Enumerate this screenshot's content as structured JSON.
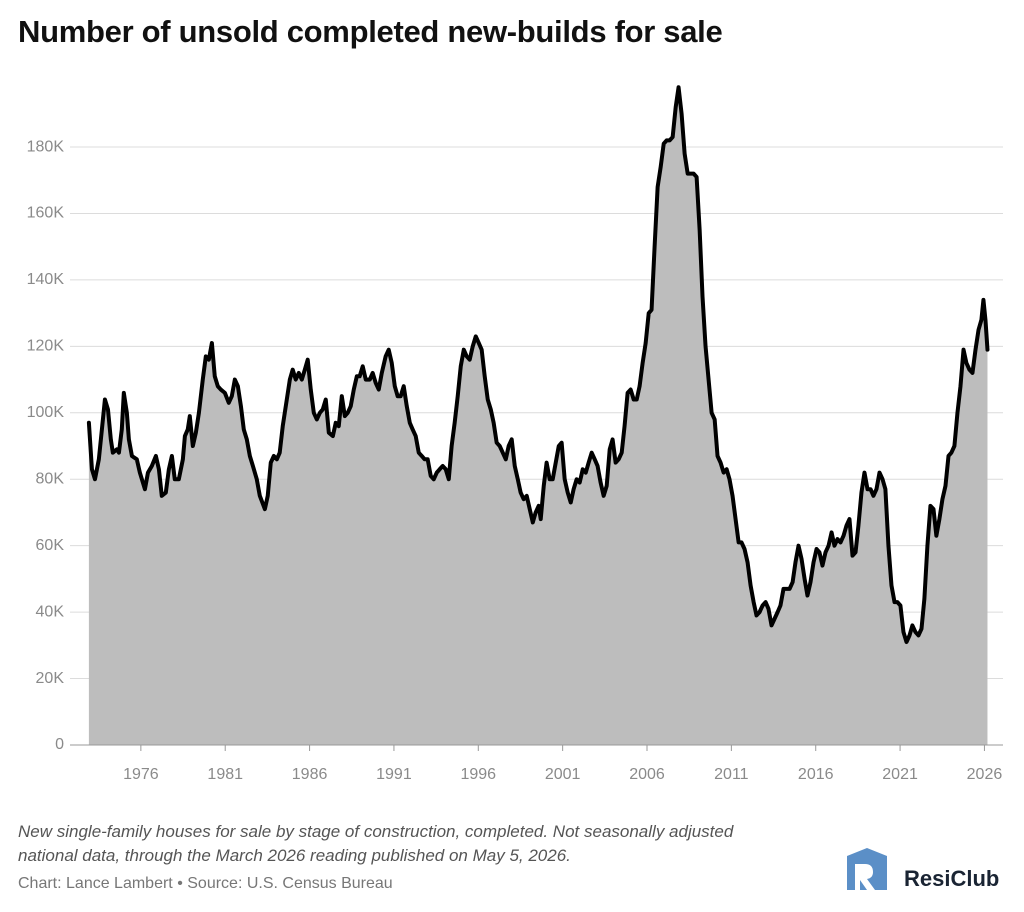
{
  "chart_data": {
    "type": "area",
    "title": "Number of unsold completed new-builds for sale",
    "note": "New single-family houses for sale by stage of construction, completed. Not seasonally adjusted national data, through the March 2026 reading published on May 5, 2026.",
    "source": "Chart: Lance Lambert • Source: U.S. Census Bureau",
    "brand": "ResiClub",
    "line_color": "#000000",
    "fill_color": "#bdbdbd",
    "grid": true,
    "xlim": [
      1971.8,
      2027.1
    ],
    "xticks": [
      1976,
      1981,
      1986,
      1991,
      1996,
      2001,
      2006,
      2011,
      2016,
      2021,
      2026
    ],
    "ylim": [
      0,
      200000
    ],
    "yticks": [
      0,
      {
        "value": 20000,
        "label": "20K"
      },
      {
        "value": 40000,
        "label": "40K"
      },
      {
        "value": 60000,
        "label": "60K"
      },
      {
        "value": 80000,
        "label": "80K"
      },
      {
        "value": 100000,
        "label": "100K"
      },
      {
        "value": 120000,
        "label": "120K"
      },
      {
        "value": 140000,
        "label": "140K"
      },
      {
        "value": 160000,
        "label": "160K"
      },
      {
        "value": 180000,
        "label": "180K"
      }
    ],
    "x": [
      1972.92,
      1973.1,
      1973.28,
      1973.51,
      1973.69,
      1973.87,
      1974.05,
      1974.22,
      1974.34,
      1974.58,
      1974.7,
      1974.87,
      1974.99,
      1975.17,
      1975.29,
      1975.47,
      1975.76,
      1975.94,
      1976.24,
      1976.42,
      1976.65,
      1976.89,
      1977.07,
      1977.24,
      1977.48,
      1977.66,
      1977.84,
      1978.01,
      1978.25,
      1978.49,
      1978.61,
      1978.78,
      1978.9,
      1979.08,
      1979.26,
      1979.44,
      1979.67,
      1979.85,
      1980.03,
      1980.21,
      1980.38,
      1980.56,
      1980.74,
      1980.98,
      1981.21,
      1981.39,
      1981.57,
      1981.75,
      1981.93,
      1982.1,
      1982.28,
      1982.46,
      1982.64,
      1982.87,
      1983.05,
      1983.35,
      1983.52,
      1983.7,
      1983.88,
      1984.06,
      1984.23,
      1984.41,
      1984.65,
      1984.83,
      1985.0,
      1985.18,
      1985.36,
      1985.54,
      1985.72,
      1985.89,
      1986.07,
      1986.25,
      1986.43,
      1986.61,
      1986.78,
      1986.96,
      1987.14,
      1987.38,
      1987.55,
      1987.73,
      1987.91,
      1988.09,
      1988.26,
      1988.44,
      1988.62,
      1988.8,
      1988.97,
      1989.15,
      1989.33,
      1989.57,
      1989.74,
      1989.92,
      1990.1,
      1990.28,
      1990.51,
      1990.69,
      1990.87,
      1991.05,
      1991.22,
      1991.4,
      1991.58,
      1991.76,
      1991.94,
      1992.11,
      1992.29,
      1992.47,
      1992.65,
      1992.82,
      1993.0,
      1993.18,
      1993.36,
      1993.54,
      1993.71,
      1993.89,
      1994.07,
      1994.25,
      1994.42,
      1994.6,
      1994.78,
      1994.96,
      1995.14,
      1995.31,
      1995.49,
      1995.67,
      1995.85,
      1996.03,
      1996.2,
      1996.38,
      1996.56,
      1996.74,
      1996.91,
      1997.09,
      1997.27,
      1997.45,
      1997.63,
      1997.8,
      1997.98,
      1998.16,
      1998.34,
      1998.51,
      1998.69,
      1998.87,
      1999.05,
      1999.23,
      1999.4,
      1999.58,
      1999.7,
      1999.88,
      2000.05,
      2000.23,
      2000.41,
      2000.59,
      2000.77,
      2000.94,
      2001.12,
      2001.3,
      2001.48,
      2001.65,
      2001.83,
      2002.01,
      2002.19,
      2002.37,
      2002.54,
      2002.72,
      2002.9,
      2003.07,
      2003.25,
      2003.43,
      2003.61,
      2003.79,
      2003.96,
      2004.14,
      2004.32,
      2004.5,
      2004.67,
      2004.85,
      2005.03,
      2005.21,
      2005.39,
      2005.56,
      2005.74,
      2005.92,
      2006.1,
      2006.27,
      2006.45,
      2006.63,
      2006.81,
      2006.99,
      2007.16,
      2007.34,
      2007.52,
      2007.7,
      2007.87,
      2008.05,
      2008.23,
      2008.41,
      2008.58,
      2008.76,
      2008.94,
      2009.12,
      2009.29,
      2009.47,
      2009.65,
      2009.83,
      2010.01,
      2010.18,
      2010.36,
      2010.54,
      2010.72,
      2010.89,
      2011.07,
      2011.25,
      2011.43,
      2011.6,
      2011.78,
      2011.96,
      2012.14,
      2012.32,
      2012.49,
      2012.67,
      2012.85,
      2013.03,
      2013.2,
      2013.38,
      2013.56,
      2013.74,
      2013.91,
      2014.09,
      2014.27,
      2014.45,
      2014.63,
      2014.8,
      2014.98,
      2015.16,
      2015.34,
      2015.51,
      2015.69,
      2015.87,
      2016.05,
      2016.22,
      2016.4,
      2016.58,
      2016.76,
      2016.94,
      2017.11,
      2017.29,
      2017.47,
      2017.65,
      2017.82,
      2018.0,
      2018.18,
      2018.36,
      2018.53,
      2018.71,
      2018.89,
      2019.07,
      2019.25,
      2019.42,
      2019.6,
      2019.78,
      2019.96,
      2020.13,
      2020.31,
      2020.49,
      2020.67,
      2020.84,
      2021.02,
      2021.2,
      2021.38,
      2021.56,
      2021.73,
      2021.91,
      2022.09,
      2022.27,
      2022.44,
      2022.62,
      2022.8,
      2022.98,
      2023.15,
      2023.33,
      2023.51,
      2023.69,
      2023.87,
      2024.04,
      2024.22,
      2024.4,
      2024.58,
      2024.76,
      2024.93,
      2025.11,
      2025.29,
      2025.47,
      2025.65,
      2025.82,
      2025.94,
      2026.06,
      2026.18
    ],
    "values": [
      97000,
      83000,
      80000,
      86000,
      95000,
      104000,
      101000,
      92000,
      88000,
      89000,
      88000,
      95000,
      106000,
      100000,
      92000,
      87000,
      86000,
      82000,
      77000,
      82000,
      84000,
      87000,
      83000,
      75000,
      76000,
      83000,
      87000,
      80000,
      80000,
      86000,
      93000,
      95000,
      99000,
      90000,
      94000,
      100000,
      110000,
      117000,
      116000,
      121000,
      111000,
      108000,
      107000,
      106000,
      103000,
      105000,
      110000,
      108000,
      102000,
      95000,
      92000,
      87000,
      84000,
      80000,
      75000,
      71000,
      75000,
      85000,
      87000,
      86000,
      88000,
      96000,
      104000,
      110000,
      113000,
      110000,
      112000,
      110000,
      113000,
      116000,
      107000,
      100000,
      98000,
      100000,
      101000,
      104000,
      94000,
      93000,
      97000,
      96000,
      105000,
      99000,
      100000,
      102000,
      107000,
      111000,
      111000,
      114000,
      110000,
      110000,
      112000,
      109000,
      107000,
      112000,
      117000,
      119000,
      115000,
      108000,
      105000,
      105000,
      108000,
      102000,
      97000,
      95000,
      93000,
      88000,
      87000,
      86000,
      86000,
      81000,
      80000,
      82000,
      83000,
      84000,
      83000,
      80000,
      90000,
      97000,
      105000,
      114000,
      119000,
      117000,
      116000,
      120000,
      123000,
      121000,
      119000,
      111000,
      104000,
      101000,
      97000,
      91000,
      90000,
      88000,
      86000,
      90000,
      92000,
      84000,
      80000,
      76000,
      74000,
      75000,
      71000,
      67000,
      70000,
      72000,
      68000,
      78000,
      85000,
      80000,
      80000,
      85000,
      90000,
      91000,
      80000,
      76000,
      73000,
      77000,
      80000,
      79000,
      83000,
      82000,
      85000,
      88000,
      86000,
      84000,
      79000,
      75000,
      78000,
      89000,
      92000,
      85000,
      86000,
      88000,
      96000,
      106000,
      107000,
      104000,
      104000,
      108000,
      115000,
      121000,
      130000,
      131000,
      150000,
      168000,
      174000,
      181000,
      182000,
      182000,
      183000,
      192000,
      198000,
      190000,
      178000,
      172000,
      172000,
      172000,
      171000,
      155000,
      135000,
      120000,
      110000,
      100000,
      98000,
      87000,
      85000,
      82000,
      83000,
      80000,
      75000,
      68000,
      61000,
      61000,
      59000,
      55000,
      48000,
      43000,
      39000,
      40000,
      42000,
      43000,
      41000,
      36000,
      38000,
      40000,
      42000,
      47000,
      47000,
      47000,
      49000,
      55000,
      60000,
      56000,
      50000,
      45000,
      49000,
      55000,
      59000,
      58000,
      54000,
      58000,
      60000,
      64000,
      60000,
      62000,
      61000,
      63000,
      66000,
      68000,
      57000,
      58000,
      66000,
      76000,
      82000,
      77000,
      77000,
      75000,
      77000,
      82000,
      80000,
      77000,
      60000,
      48000,
      43000,
      43000,
      42000,
      34000,
      31000,
      33000,
      36000,
      34000,
      33000,
      35000,
      44000,
      60000,
      72000,
      71000,
      63000,
      68000,
      74000,
      78000,
      87000,
      88000,
      90000,
      100000,
      108000,
      119000,
      115000,
      113000,
      112000,
      119000,
      125000,
      128000,
      134000,
      128000,
      119000
    ]
  }
}
